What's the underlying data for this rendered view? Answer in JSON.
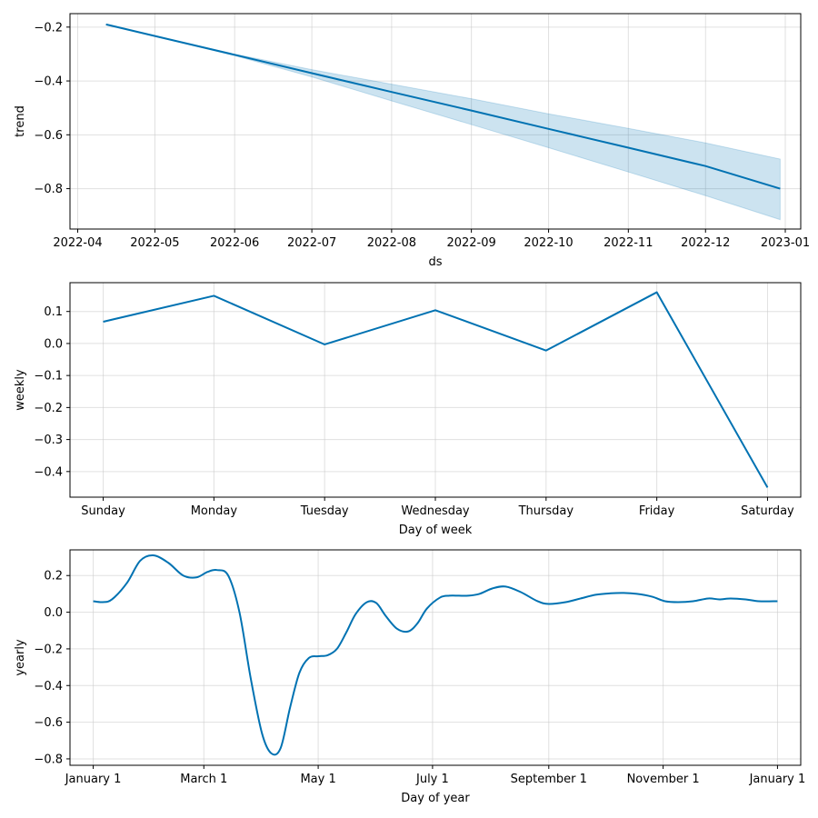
{
  "line_color": "#0072B2",
  "band_color": "#0072B2",
  "chart_data": [
    {
      "type": "line",
      "name": "trend",
      "xlabel": "ds",
      "ylabel": "trend",
      "x_type": "date",
      "xlim": [
        "2022-03-29",
        "2023-01-07"
      ],
      "ylim": [
        -0.95,
        -0.15
      ],
      "xticks": [
        "2022-04-01",
        "2022-05-01",
        "2022-06-01",
        "2022-07-01",
        "2022-08-01",
        "2022-09-01",
        "2022-10-01",
        "2022-11-01",
        "2022-12-01",
        "2023-01-01"
      ],
      "xtick_labels": [
        "2022-04",
        "2022-05",
        "2022-06",
        "2022-07",
        "2022-08",
        "2022-09",
        "2022-10",
        "2022-11",
        "2022-12",
        "2023-01"
      ],
      "yticks": [
        -0.8,
        -0.6,
        -0.4,
        -0.2
      ],
      "ytick_labels": [
        "−0.8",
        "−0.6",
        "−0.4",
        "−0.2"
      ],
      "grid": true,
      "series": [
        {
          "x": [
            "2022-04-12",
            "2022-05-01",
            "2022-06-01",
            "2022-07-01",
            "2022-08-01",
            "2022-09-01",
            "2022-10-01",
            "2022-11-01",
            "2022-12-01",
            "2022-12-30"
          ],
          "values": [
            -0.19,
            -0.233,
            -0.303,
            -0.371,
            -0.441,
            -0.51,
            -0.578,
            -0.648,
            -0.716,
            -0.8
          ],
          "lower": [
            -0.19,
            -0.233,
            -0.306,
            -0.385,
            -0.474,
            -0.562,
            -0.648,
            -0.738,
            -0.826,
            -0.915
          ],
          "upper": [
            -0.19,
            -0.233,
            -0.3,
            -0.358,
            -0.412,
            -0.466,
            -0.522,
            -0.576,
            -0.63,
            -0.69
          ]
        }
      ]
    },
    {
      "type": "line",
      "name": "weekly",
      "xlabel": "Day of week",
      "ylabel": "weekly",
      "categories": [
        "Sunday",
        "Monday",
        "Tuesday",
        "Wednesday",
        "Thursday",
        "Friday",
        "Saturday"
      ],
      "ylim": [
        -0.48,
        0.19
      ],
      "yticks": [
        -0.4,
        -0.3,
        -0.2,
        -0.1,
        0.0,
        0.1
      ],
      "ytick_labels": [
        "−0.4",
        "−0.3",
        "−0.2",
        "−0.1",
        "0.0",
        "0.1"
      ],
      "grid": true,
      "series": [
        {
          "values": [
            0.068,
            0.149,
            -0.003,
            0.104,
            -0.022,
            0.16,
            -0.45
          ]
        }
      ]
    },
    {
      "type": "line",
      "name": "yearly",
      "xlabel": "Day of year",
      "ylabel": "yearly",
      "xlim": [
        -12.4,
        377.4
      ],
      "ylim": [
        -0.835,
        0.34
      ],
      "xticks": [
        0,
        59,
        120,
        181,
        243,
        304,
        365
      ],
      "xtick_labels": [
        "January 1",
        "March 1",
        "May 1",
        "July 1",
        "September 1",
        "November 1",
        "January 1"
      ],
      "yticks": [
        -0.8,
        -0.6,
        -0.4,
        -0.2,
        0.0,
        0.2
      ],
      "ytick_labels": [
        "−0.8",
        "−0.6",
        "−0.4",
        "−0.2",
        "0.0",
        "0.2"
      ],
      "grid": true,
      "series": [
        {
          "x": [
            0,
            5,
            10,
            18,
            25,
            32,
            40,
            48,
            55,
            61,
            66,
            72,
            78,
            84,
            90,
            95,
            100,
            105,
            110,
            115,
            120,
            125,
            130,
            135,
            140,
            146,
            151,
            156,
            162,
            168,
            173,
            178,
            185,
            190,
            195,
            200,
            206,
            213,
            220,
            228,
            237,
            243,
            252,
            260,
            268,
            276,
            283,
            290,
            298,
            305,
            312,
            320,
            328,
            334,
            340,
            348,
            355,
            365
          ],
          "values": [
            0.06,
            0.055,
            0.07,
            0.16,
            0.28,
            0.31,
            0.27,
            0.2,
            0.19,
            0.22,
            0.23,
            0.2,
            0.0,
            -0.36,
            -0.66,
            -0.77,
            -0.74,
            -0.52,
            -0.33,
            -0.25,
            -0.24,
            -0.235,
            -0.2,
            -0.11,
            -0.01,
            0.055,
            0.05,
            -0.02,
            -0.09,
            -0.105,
            -0.06,
            0.02,
            0.08,
            0.09,
            0.09,
            0.09,
            0.1,
            0.13,
            0.14,
            0.11,
            0.06,
            0.045,
            0.055,
            0.075,
            0.095,
            0.103,
            0.105,
            0.1,
            0.085,
            0.06,
            0.055,
            0.06,
            0.075,
            0.07,
            0.075,
            0.07,
            0.06,
            0.06
          ]
        }
      ]
    }
  ]
}
